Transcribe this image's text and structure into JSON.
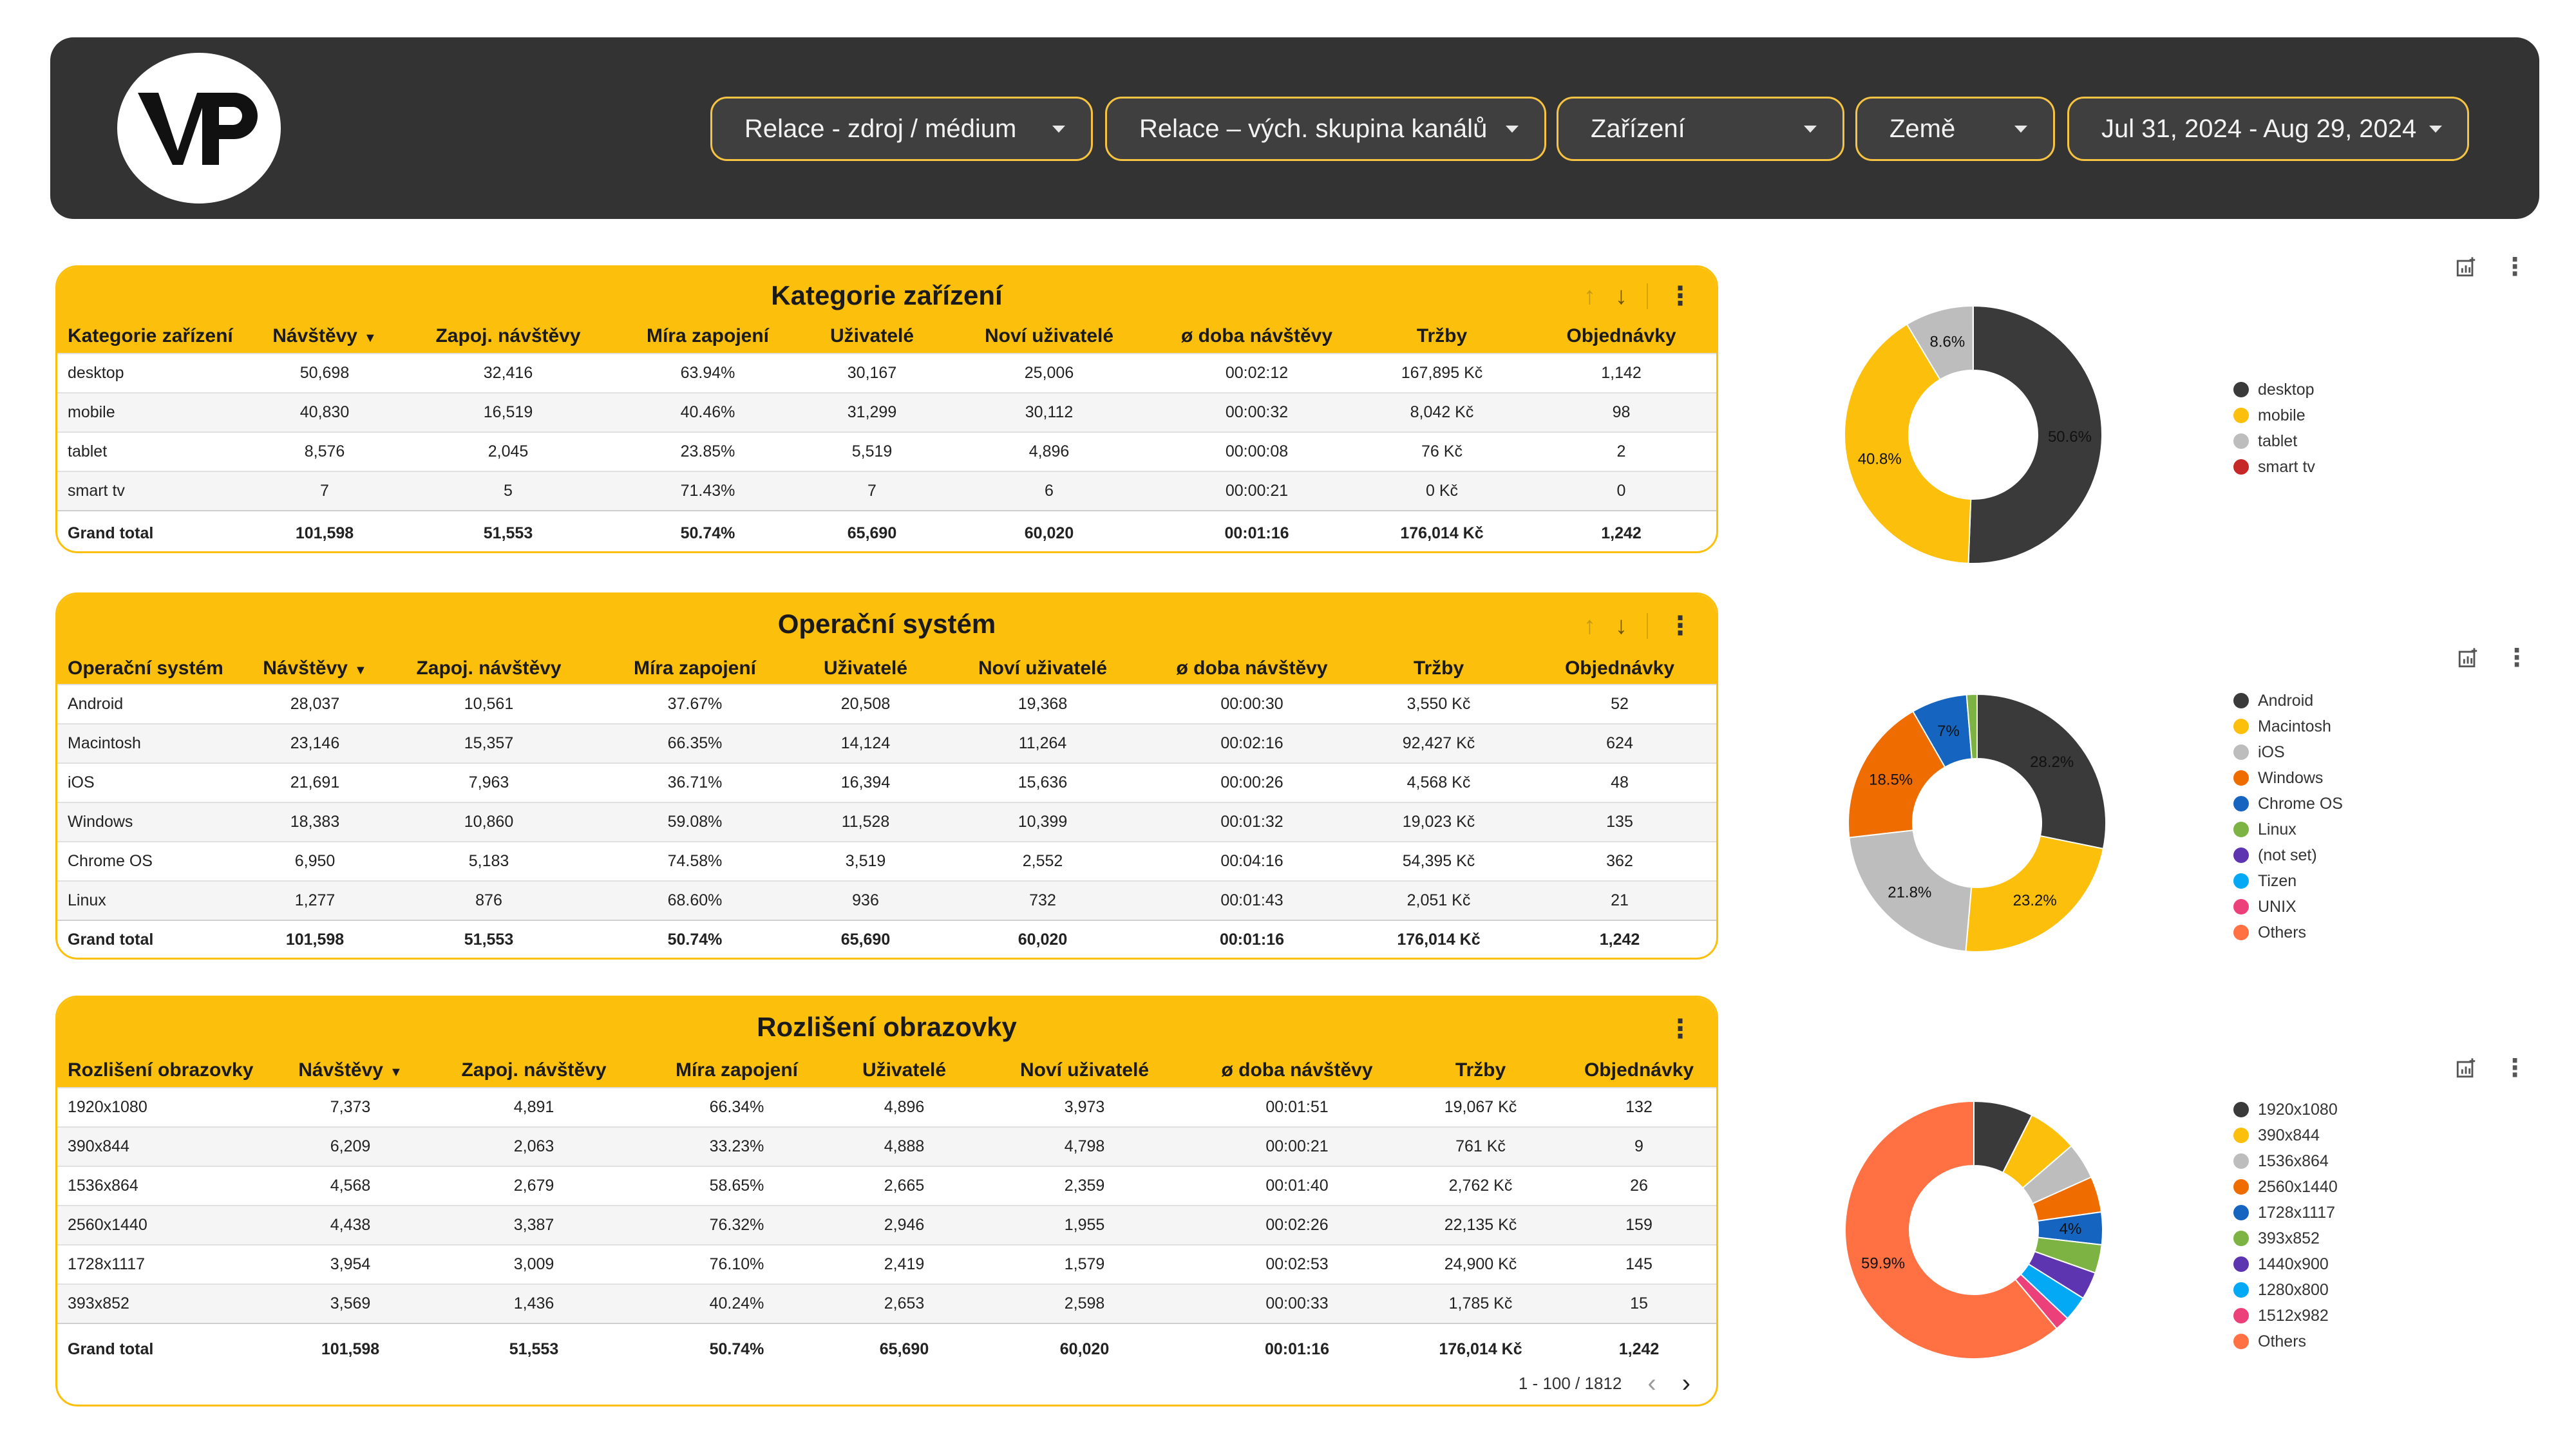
{
  "header": {
    "filters": [
      {
        "label": "Relace - zdroj / médium"
      },
      {
        "label": "Relace – vých. skupina kanálů"
      },
      {
        "label": "Zařízení"
      },
      {
        "label": "Země"
      },
      {
        "label": "Jul 31, 2024 - Aug 29, 2024"
      }
    ]
  },
  "tables": [
    {
      "title": "Kategorie zařízení",
      "columns": [
        "Kategorie zařízení",
        "Návštěvy",
        "Zapoj. návštěvy",
        "Míra zapojení",
        "Uživatelé",
        "Noví uživatelé",
        "ø doba návštěvy",
        "Tržby",
        "Objednávky"
      ],
      "rows": [
        [
          "desktop",
          "50,698",
          "32,416",
          "63.94%",
          "30,167",
          "25,006",
          "00:02:12",
          "167,895 Kč",
          "1,142"
        ],
        [
          "mobile",
          "40,830",
          "16,519",
          "40.46%",
          "31,299",
          "30,112",
          "00:00:32",
          "8,042 Kč",
          "98"
        ],
        [
          "tablet",
          "8,576",
          "2,045",
          "23.85%",
          "5,519",
          "4,896",
          "00:00:08",
          "76 Kč",
          "2"
        ],
        [
          "smart tv",
          "7",
          "5",
          "71.43%",
          "7",
          "6",
          "00:00:21",
          "0 Kč",
          "0"
        ]
      ],
      "total": [
        "Grand total",
        "101,598",
        "51,553",
        "50.74%",
        "65,690",
        "60,020",
        "00:01:16",
        "176,014 Kč",
        "1,242"
      ]
    },
    {
      "title": "Operační systém",
      "columns": [
        "Operační systém",
        "Návštěvy",
        "Zapoj. návštěvy",
        "Míra zapojení",
        "Uživatelé",
        "Noví uživatelé",
        "ø doba návštěvy",
        "Tržby",
        "Objednávky"
      ],
      "rows": [
        [
          "Android",
          "28,037",
          "10,561",
          "37.67%",
          "20,508",
          "19,368",
          "00:00:30",
          "3,550 Kč",
          "52"
        ],
        [
          "Macintosh",
          "23,146",
          "15,357",
          "66.35%",
          "14,124",
          "11,264",
          "00:02:16",
          "92,427 Kč",
          "624"
        ],
        [
          "iOS",
          "21,691",
          "7,963",
          "36.71%",
          "16,394",
          "15,636",
          "00:00:26",
          "4,568 Kč",
          "48"
        ],
        [
          "Windows",
          "18,383",
          "10,860",
          "59.08%",
          "11,528",
          "10,399",
          "00:01:32",
          "19,023 Kč",
          "135"
        ],
        [
          "Chrome OS",
          "6,950",
          "5,183",
          "74.58%",
          "3,519",
          "2,552",
          "00:04:16",
          "54,395 Kč",
          "362"
        ],
        [
          "Linux",
          "1,277",
          "876",
          "68.60%",
          "936",
          "732",
          "00:01:43",
          "2,051 Kč",
          "21"
        ]
      ],
      "total": [
        "Grand total",
        "101,598",
        "51,553",
        "50.74%",
        "65,690",
        "60,020",
        "00:01:16",
        "176,014 Kč",
        "1,242"
      ]
    },
    {
      "title": "Rozlišení obrazovky",
      "columns": [
        "Rozlišení obrazovky",
        "Návštěvy",
        "Zapoj. návštěvy",
        "Míra zapojení",
        "Uživatelé",
        "Noví uživatelé",
        "ø doba návštěvy",
        "Tržby",
        "Objednávky"
      ],
      "rows": [
        [
          "1920x1080",
          "7,373",
          "4,891",
          "66.34%",
          "4,896",
          "3,973",
          "00:01:51",
          "19,067 Kč",
          "132"
        ],
        [
          "390x844",
          "6,209",
          "2,063",
          "33.23%",
          "4,888",
          "4,798",
          "00:00:21",
          "761 Kč",
          "9"
        ],
        [
          "1536x864",
          "4,568",
          "2,679",
          "58.65%",
          "2,665",
          "2,359",
          "00:01:40",
          "2,762 Kč",
          "26"
        ],
        [
          "2560x1440",
          "4,438",
          "3,387",
          "76.32%",
          "2,946",
          "1,955",
          "00:02:26",
          "22,135 Kč",
          "159"
        ],
        [
          "1728x1117",
          "3,954",
          "3,009",
          "76.10%",
          "2,419",
          "1,579",
          "00:02:53",
          "24,900 Kč",
          "145"
        ],
        [
          "393x852",
          "3,569",
          "1,436",
          "40.24%",
          "2,653",
          "2,598",
          "00:00:33",
          "1,785 Kč",
          "15"
        ]
      ],
      "total": [
        "Grand total",
        "101,598",
        "51,553",
        "50.74%",
        "65,690",
        "60,020",
        "00:01:16",
        "176,014 Kč",
        "1,242"
      ],
      "pagination": "1 - 100 / 1812"
    }
  ],
  "chart_data": [
    {
      "type": "pie",
      "categories": [
        "desktop",
        "mobile",
        "tablet",
        "smart tv"
      ],
      "values": [
        50.6,
        40.8,
        8.6,
        0.01
      ],
      "data_labels": [
        "50.6%",
        "40.8%",
        "8.6%",
        ""
      ],
      "colors": [
        "#3a3a3a",
        "#fbbf0c",
        "#bdbdbd",
        "#c62828"
      ],
      "legend": "right"
    },
    {
      "type": "pie",
      "categories": [
        "Android",
        "Macintosh",
        "iOS",
        "Windows",
        "Chrome OS",
        "Linux",
        "(not set)",
        "Tizen",
        "UNIX",
        "Others"
      ],
      "values": [
        28.2,
        23.2,
        21.8,
        18.5,
        7.0,
        1.3,
        0.0,
        0.0,
        0.0,
        0.0
      ],
      "data_labels": [
        "28.2%",
        "23.2%",
        "21.8%",
        "18.5%",
        "7%",
        "",
        "",
        "",
        "",
        ""
      ],
      "colors": [
        "#3a3a3a",
        "#fbbf0c",
        "#bdbdbd",
        "#ef6c00",
        "#1565c0",
        "#7cb342",
        "#5e35b1",
        "#03a9f4",
        "#ec407a",
        "#ff7043"
      ],
      "legend": "right"
    },
    {
      "type": "pie",
      "categories": [
        "1920x1080",
        "390x844",
        "1536x864",
        "2560x1440",
        "1728x1117",
        "393x852",
        "1440x900",
        "1280x800",
        "1512x982",
        "Others"
      ],
      "values": [
        7.3,
        6.1,
        4.5,
        4.4,
        4.0,
        3.5,
        3.4,
        3.1,
        1.8,
        59.9
      ],
      "data_labels": [
        "",
        "",
        "",
        "",
        "4%",
        "",
        "",
        "",
        "",
        "59.9%"
      ],
      "colors": [
        "#3a3a3a",
        "#fbbf0c",
        "#bdbdbd",
        "#ef6c00",
        "#1565c0",
        "#7cb342",
        "#5e35b1",
        "#03a9f4",
        "#ec407a",
        "#ff7043"
      ],
      "legend": "right"
    }
  ]
}
